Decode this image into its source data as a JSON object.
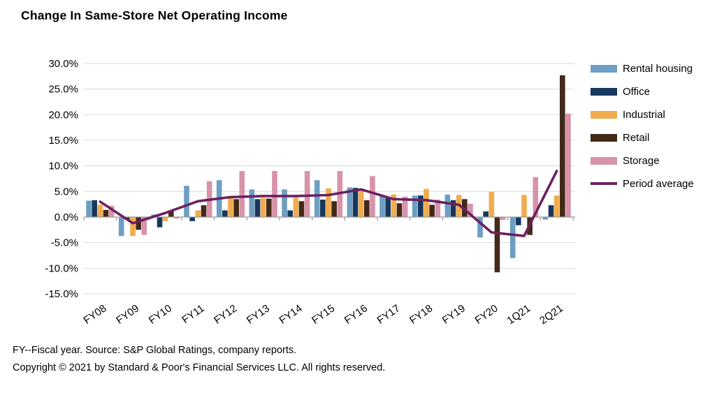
{
  "title": "Change In Same-Store Net Operating Income",
  "footer": {
    "line1": "FY--Fiscal year. Source: S&P Global Ratings, company reports.",
    "line2": "Copyright © 2021 by Standard & Poor's Financial Services LLC. All rights reserved."
  },
  "colors": {
    "rental": "#6D9EC3",
    "office": "#17375E",
    "industrial": "#F0AC4E",
    "retail": "#432918",
    "storage": "#D893A9",
    "average": "#6B2161",
    "gridline": "#D9D9D9",
    "axis": "#9A9A9A",
    "text": "#000000"
  },
  "chart_data": {
    "type": "bar",
    "title": "Change In Same-Store Net Operating Income",
    "categories": [
      "FY08",
      "FY09",
      "FY10",
      "FY11",
      "FY12",
      "FY13",
      "FY14",
      "FY15",
      "FY16",
      "FY17",
      "FY18",
      "FY19",
      "FY20",
      "1Q21",
      "2Q21"
    ],
    "series": [
      {
        "name": "Rental housing",
        "color_key": "rental",
        "values": [
          3.2,
          -3.7,
          0.5,
          6.1,
          7.2,
          5.4,
          5.4,
          7.2,
          5.8,
          4.2,
          4.2,
          4.4,
          -4.0,
          -8.0,
          -0.5
        ]
      },
      {
        "name": "Office",
        "color_key": "office",
        "values": [
          3.3,
          -0.5,
          -2.0,
          -0.8,
          1.3,
          3.5,
          1.3,
          3.4,
          5.7,
          3.7,
          4.2,
          3.3,
          1.1,
          -1.6,
          2.3
        ]
      },
      {
        "name": "Industrial",
        "color_key": "industrial",
        "values": [
          2.4,
          -3.7,
          -0.8,
          1.3,
          4.0,
          3.7,
          3.8,
          5.6,
          5.2,
          4.4,
          5.5,
          4.3,
          4.9,
          4.3,
          4.2
        ]
      },
      {
        "name": "Retail",
        "color_key": "retail",
        "values": [
          1.4,
          -2.5,
          1.3,
          2.3,
          3.5,
          3.6,
          3.1,
          3.1,
          3.3,
          2.7,
          2.4,
          3.5,
          -10.8,
          -3.5,
          27.7
        ]
      },
      {
        "name": "Storage",
        "color_key": "storage",
        "values": [
          2.2,
          -3.5,
          -0.3,
          7.0,
          9.0,
          9.0,
          9.0,
          9.0,
          8.0,
          4.0,
          3.4,
          2.6,
          -0.6,
          7.8,
          20.2
        ]
      }
    ],
    "line_series": {
      "name": "Period average",
      "color_key": "average",
      "values": [
        3.0,
        -1.2,
        0.8,
        3.1,
        3.9,
        4.1,
        4.1,
        4.3,
        5.4,
        3.5,
        3.3,
        2.4,
        -3.0,
        -3.7,
        9.0
      ]
    },
    "ylim": [
      -15,
      30
    ],
    "ytick_step": 5,
    "ytick_labels": [
      "30.0%",
      "25.0%",
      "20.0%",
      "15.0%",
      "10.0%",
      "5.0%",
      "0.0%",
      "-5.0%",
      "-10.0%",
      "-15.0%"
    ],
    "grid": true,
    "legend_position": "right"
  }
}
